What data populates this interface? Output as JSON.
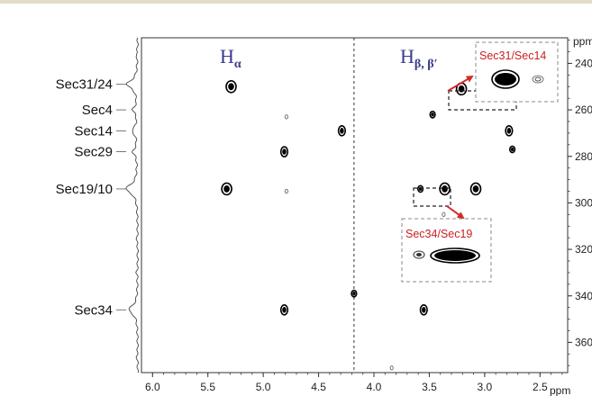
{
  "colors": {
    "top_bar": "#e3dcc6",
    "header": "#3a3a8c",
    "inset_label": "#cc1f1f",
    "arrow": "#d42a2a",
    "peak": "#000000"
  },
  "headers": {
    "h_alpha": {
      "base": "H",
      "sub": "α"
    },
    "h_beta": {
      "base": "H",
      "sub": "β, β′"
    }
  },
  "insets": {
    "top": {
      "label": "Sec31/Sec14"
    },
    "bottom": {
      "label": "Sec34/Sec19"
    }
  },
  "chart_data": {
    "type": "scatter",
    "title": "",
    "x_axis": {
      "unit": "ppm",
      "range": [
        6.1,
        2.25
      ],
      "reversed": true,
      "ticks": [
        "6.0",
        "5.5",
        "5.0",
        "4.5",
        "4.0",
        "3.5",
        "3.0",
        "2.5"
      ]
    },
    "y_axis": {
      "unit": "ppm",
      "range": [
        229,
        373
      ],
      "reversed": true,
      "ticks": [
        "240",
        "260",
        "280",
        "300",
        "320",
        "340",
        "360"
      ]
    },
    "divider_x": 4.18,
    "projection_labels": [
      {
        "label": "Sec31/24",
        "y": 249
      },
      {
        "label": "Sec4",
        "y": 260
      },
      {
        "label": "Sec14",
        "y": 269
      },
      {
        "label": "Sec29",
        "y": 278
      },
      {
        "label": "Sec19/10",
        "y": 294
      },
      {
        "label": "Sec34",
        "y": 346
      }
    ],
    "peaks": [
      {
        "x": 5.29,
        "y": 250,
        "size": "large"
      },
      {
        "x": 4.79,
        "y": 263,
        "size": "tiny"
      },
      {
        "x": 4.29,
        "y": 269,
        "size": "medium"
      },
      {
        "x": 4.81,
        "y": 278,
        "size": "medium"
      },
      {
        "x": 5.33,
        "y": 294,
        "size": "large"
      },
      {
        "x": 4.79,
        "y": 295,
        "size": "tiny"
      },
      {
        "x": 4.81,
        "y": 346,
        "size": "medium"
      },
      {
        "x": 4.18,
        "y": 339,
        "size": "small"
      },
      {
        "x": 3.21,
        "y": 251,
        "size": "large"
      },
      {
        "x": 3.47,
        "y": 262,
        "size": "small"
      },
      {
        "x": 2.78,
        "y": 269,
        "size": "medium"
      },
      {
        "x": 2.75,
        "y": 277,
        "size": "small"
      },
      {
        "x": 3.58,
        "y": 294,
        "size": "small"
      },
      {
        "x": 3.36,
        "y": 294,
        "size": "large"
      },
      {
        "x": 3.08,
        "y": 294,
        "size": "large"
      },
      {
        "x": 3.37,
        "y": 305,
        "size": "tiny"
      },
      {
        "x": 3.55,
        "y": 346,
        "size": "medium"
      },
      {
        "x": 3.84,
        "y": 371,
        "size": "tiny"
      }
    ]
  }
}
